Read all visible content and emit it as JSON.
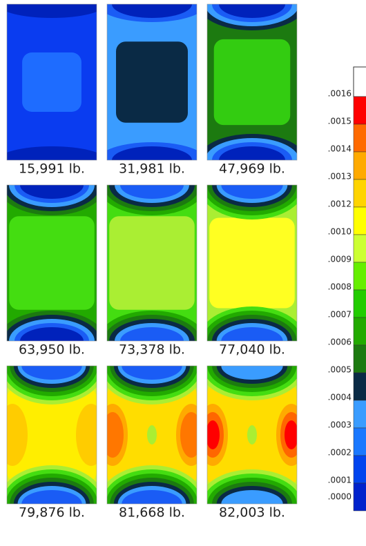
{
  "panels": [
    {
      "label": "15,991 lb."
    },
    {
      "label": "31,981 lb."
    },
    {
      "label": "47,969 lb."
    },
    {
      "label": "63,950 lb."
    },
    {
      "label": "73,378 lb."
    },
    {
      "label": "77,040 lb."
    },
    {
      "label": "79,876 lb."
    },
    {
      "label": "81,668 lb."
    },
    {
      "label": "82,003 lb."
    }
  ],
  "legend": {
    "labels": [
      ".0016",
      ".0015",
      ".0014",
      ".0013",
      ".0012",
      ".0010",
      ".0009",
      ".0008",
      ".0007",
      ".0006",
      ".0005",
      ".0004",
      ".0003",
      ".0002",
      ".0001",
      ".0000"
    ]
  }
}
